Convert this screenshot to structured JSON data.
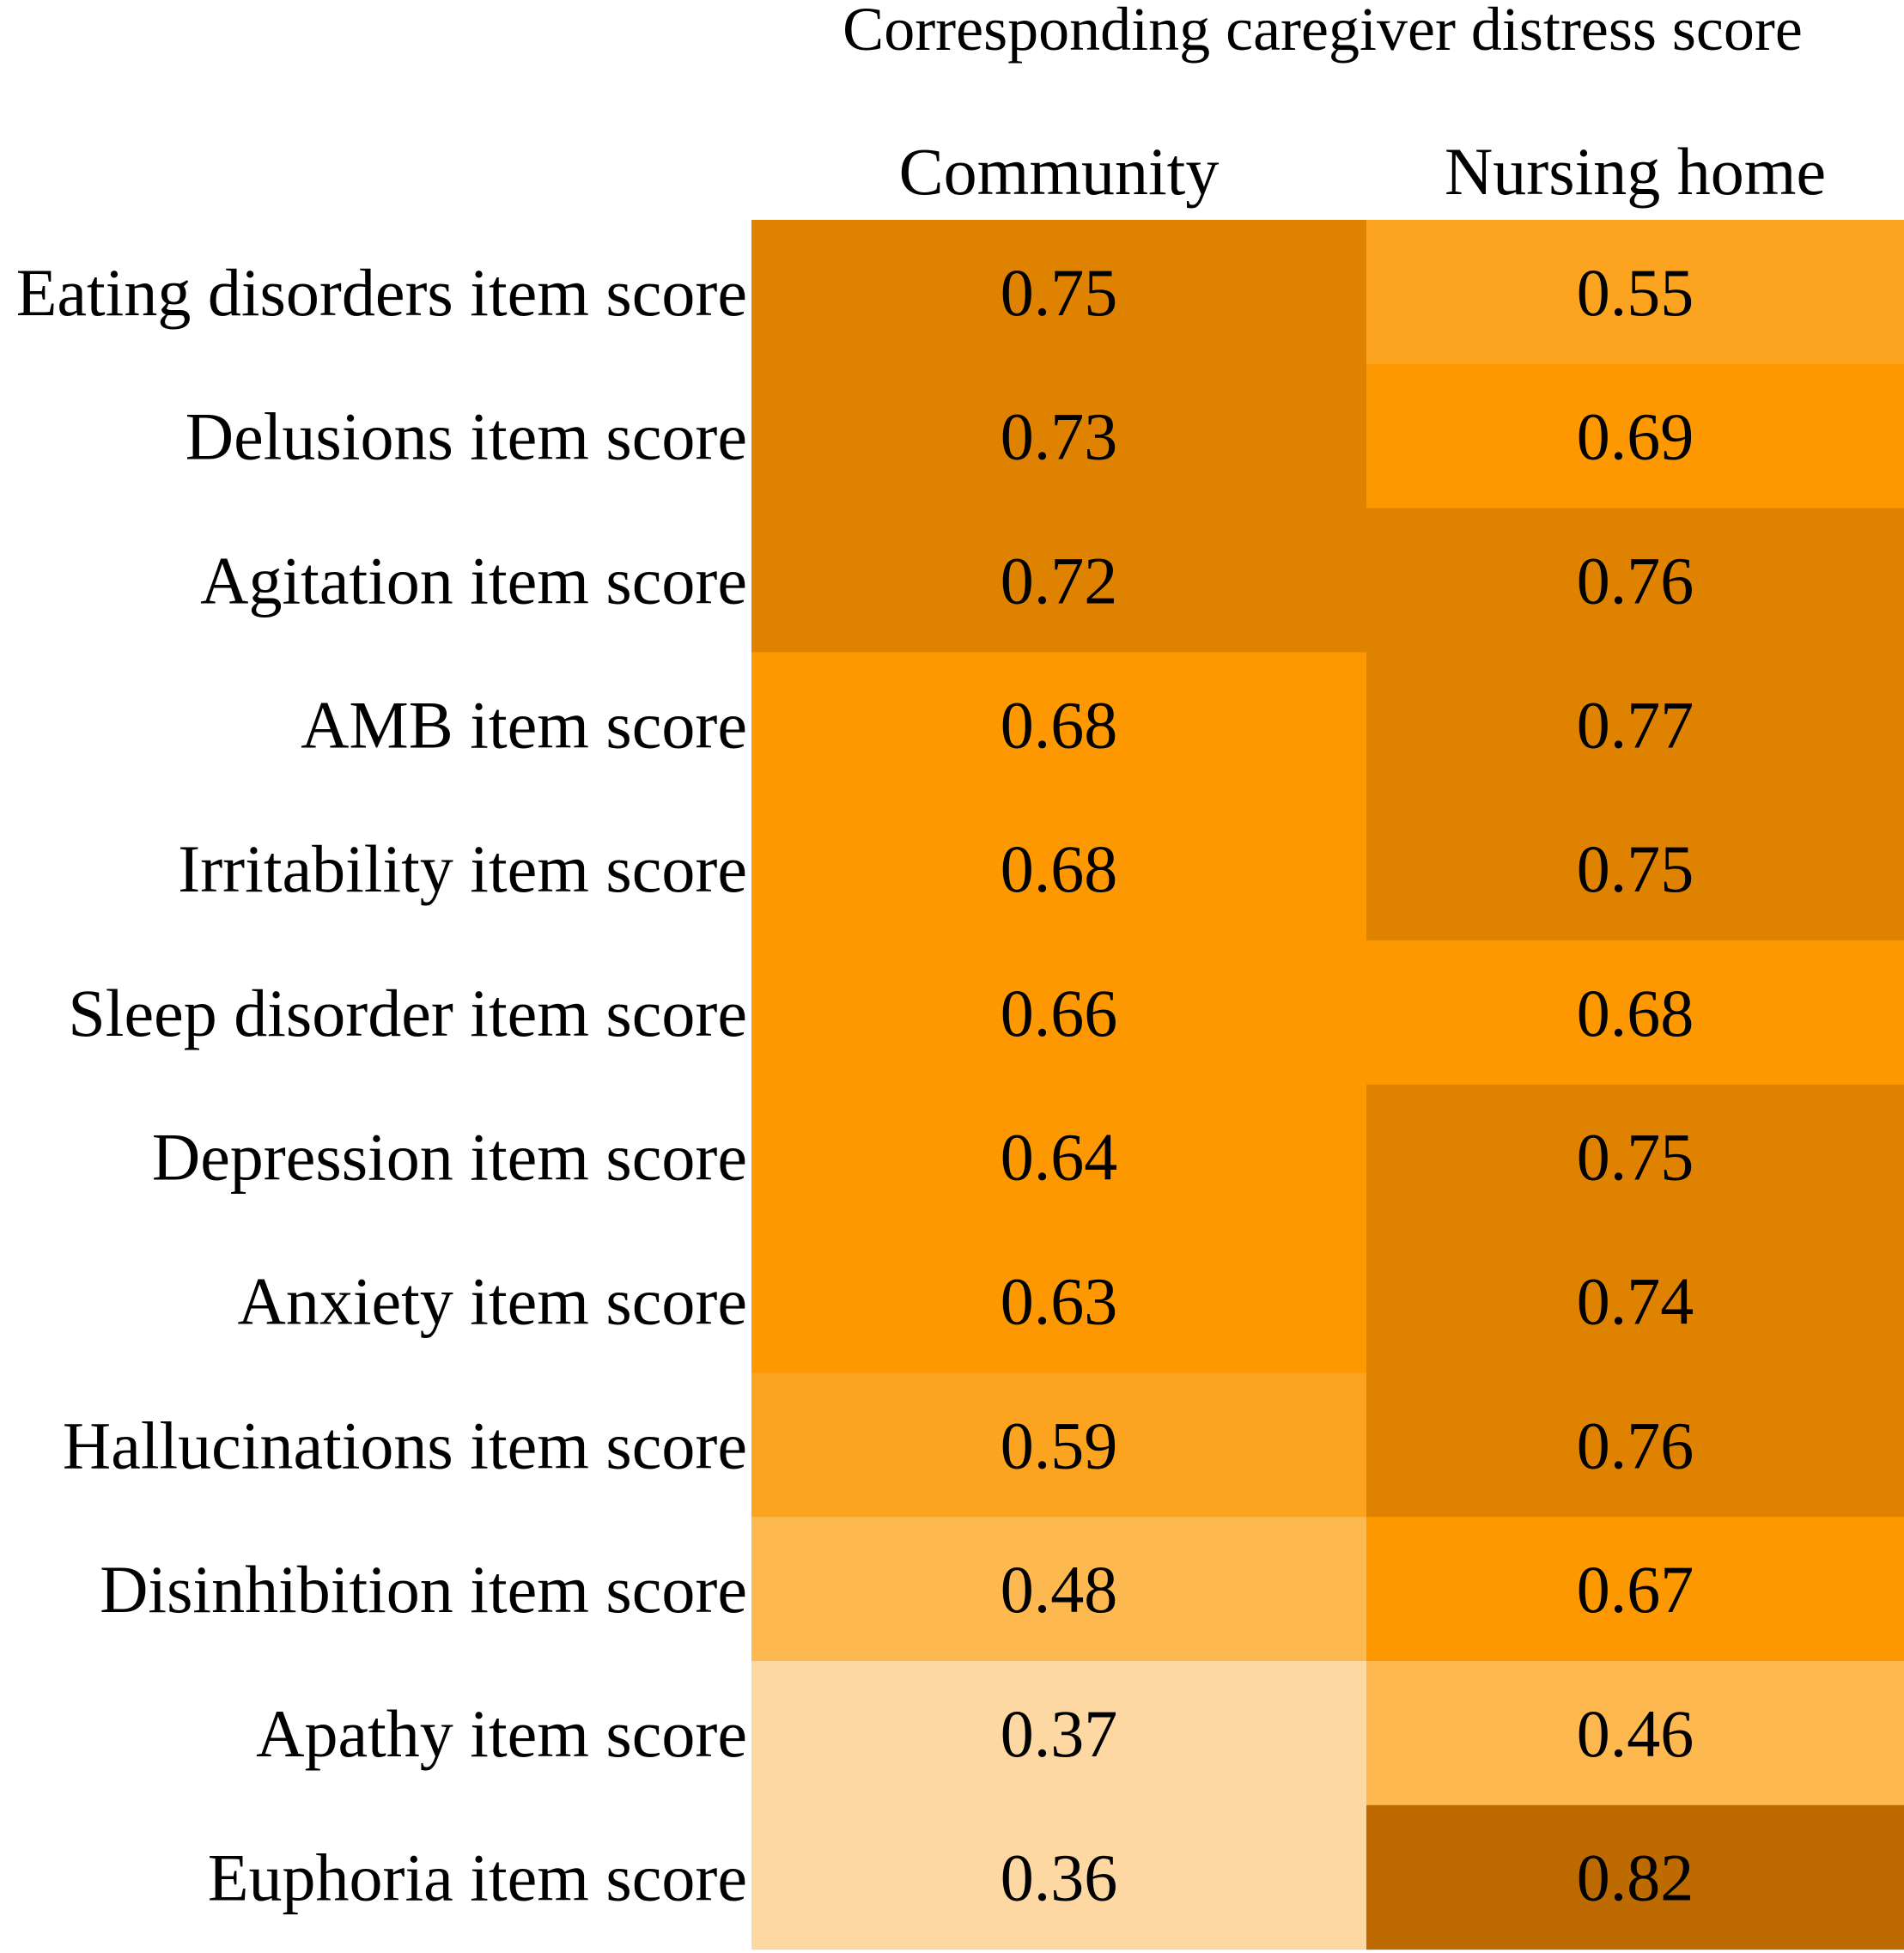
{
  "chart_data": {
    "type": "heatmap",
    "title": "Corresponding caregiver distress score",
    "columns": [
      "Community",
      "Nursing home"
    ],
    "rows": [
      "Eating disorders item score",
      "Delusions item score",
      "Agitation item score",
      "AMB item score",
      "Irritability item score",
      "Sleep disorder item score",
      "Depression item score",
      "Anxiety item score",
      "Hallucinations item score",
      "Disinhibition item score",
      "Apathy item score",
      "Euphoria item score"
    ],
    "values": [
      [
        "0.75",
        "0.55"
      ],
      [
        "0.73",
        "0.69"
      ],
      [
        "0.72",
        "0.76"
      ],
      [
        "0.68",
        "0.77"
      ],
      [
        "0.68",
        "0.75"
      ],
      [
        "0.66",
        "0.68"
      ],
      [
        "0.64",
        "0.75"
      ],
      [
        "0.63",
        "0.74"
      ],
      [
        "0.59",
        "0.76"
      ],
      [
        "0.48",
        "0.67"
      ],
      [
        "0.37",
        "0.46"
      ],
      [
        "0.36",
        "0.82"
      ]
    ],
    "colors": {
      "lightest": "#fed8a2",
      "light": "#fdb94f",
      "medium_light": "#fca320",
      "medium": "#fd9800",
      "dark": "#df8200",
      "darkest": "#bd6b00"
    }
  }
}
